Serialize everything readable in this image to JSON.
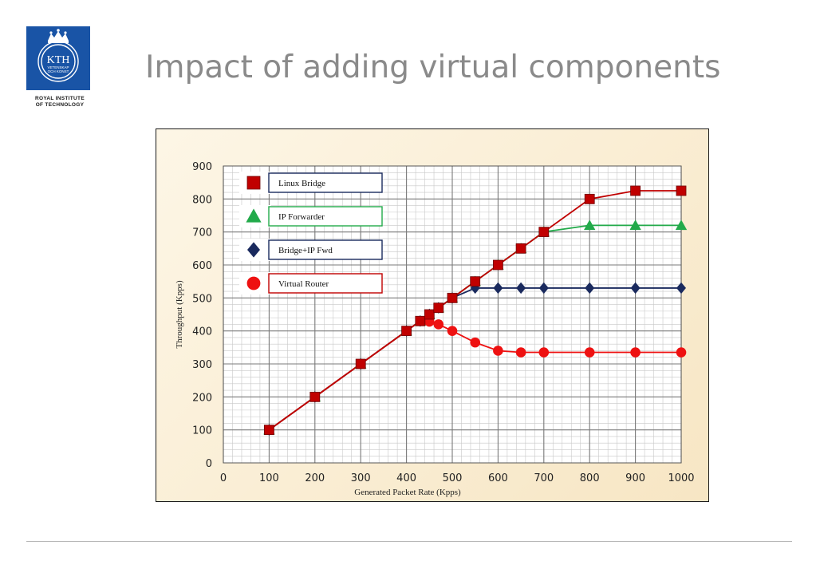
{
  "slide": {
    "title": "Impact of adding virtual components",
    "logo": {
      "monogram": "KTH",
      "motto_line1": "VETENSKAP",
      "motto_line2": "OCH KONST",
      "institution_line1": "ROYAL INSTITUTE",
      "institution_line2": "OF TECHNOLOGY"
    }
  },
  "colors": {
    "title": "#8a8a8a",
    "logo_blue": "#1954a6",
    "linux_bridge": "#c00000",
    "ip_forwarder": "#22aa4a",
    "bridge_ip_fwd": "#1a2a5e",
    "virtual_router": "#ee1111"
  },
  "chart_data": {
    "type": "line",
    "title": "",
    "xlabel": "Generated Packet Rate (Kpps)",
    "ylabel": "Throughput (Kpps)",
    "xlim": [
      0,
      1000
    ],
    "ylim": [
      0,
      900
    ],
    "x_ticks": [
      0,
      100,
      200,
      300,
      400,
      500,
      600,
      700,
      800,
      900,
      1000
    ],
    "y_ticks": [
      0,
      100,
      200,
      300,
      400,
      500,
      600,
      700,
      800,
      900
    ],
    "grid": true,
    "legend_placement": "top-left",
    "series": [
      {
        "name": "Linux Bridge",
        "marker": "square",
        "color": "#c00000",
        "x": [
          100,
          200,
          300,
          400,
          430,
          450,
          470,
          500,
          550,
          600,
          650,
          700,
          800,
          900,
          1000
        ],
        "y": [
          100,
          200,
          300,
          400,
          430,
          450,
          470,
          500,
          550,
          600,
          650,
          700,
          800,
          825,
          825
        ]
      },
      {
        "name": "IP Forwarder",
        "marker": "triangle",
        "color": "#22aa4a",
        "x": [
          100,
          200,
          300,
          400,
          430,
          450,
          470,
          500,
          550,
          600,
          650,
          700,
          800,
          900,
          1000
        ],
        "y": [
          100,
          200,
          300,
          400,
          430,
          450,
          470,
          500,
          550,
          600,
          650,
          700,
          720,
          720,
          720
        ]
      },
      {
        "name": "Bridge+IP Fwd",
        "marker": "diamond",
        "color": "#1a2a5e",
        "x": [
          100,
          200,
          300,
          400,
          430,
          450,
          470,
          500,
          550,
          600,
          650,
          700,
          800,
          900,
          1000
        ],
        "y": [
          100,
          200,
          300,
          400,
          430,
          450,
          470,
          500,
          530,
          530,
          530,
          530,
          530,
          530,
          530
        ]
      },
      {
        "name": "Virtual Router",
        "marker": "circle",
        "color": "#ee1111",
        "x": [
          100,
          200,
          300,
          400,
          430,
          450,
          470,
          500,
          550,
          600,
          650,
          700,
          800,
          900,
          1000
        ],
        "y": [
          100,
          200,
          300,
          400,
          430,
          428,
          420,
          400,
          365,
          340,
          335,
          335,
          335,
          335,
          335
        ]
      }
    ]
  }
}
